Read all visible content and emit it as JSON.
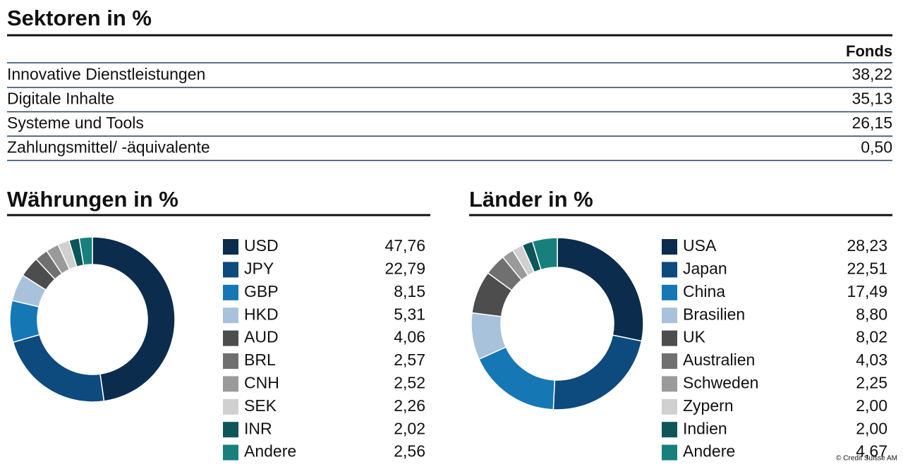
{
  "table": {
    "title": "Sektoren in %",
    "column": "Fonds",
    "rows": [
      [
        "Innovative Dienstleistungen",
        "38,22"
      ],
      [
        "Digitale Inhalte",
        "35,13"
      ],
      [
        "Systeme und Tools",
        "26,15"
      ],
      [
        "Zahlungsmittel/ -äquivalente",
        "0,50"
      ]
    ]
  },
  "chart_data": [
    {
      "type": "pie",
      "title": "Währungen in %",
      "categories": [
        "USD",
        "JPY",
        "GBP",
        "HKD",
        "AUD",
        "BRL",
        "CNH",
        "SEK",
        "INR",
        "Andere"
      ],
      "values": [
        47.76,
        22.79,
        8.15,
        5.31,
        4.06,
        2.57,
        2.52,
        2.26,
        2.02,
        2.56
      ],
      "value_labels": [
        "47,76",
        "22,79",
        "8,15",
        "5,31",
        "4,06",
        "2,57",
        "2,52",
        "2,26",
        "2,02",
        "2,56"
      ],
      "colors": [
        "#0b2c4d",
        "#0d4a7d",
        "#1677b5",
        "#a9c2db",
        "#4d4d4d",
        "#707070",
        "#9a9a9a",
        "#d0d0d0",
        "#0d5558",
        "#17807d"
      ]
    },
    {
      "type": "pie",
      "title": "Länder in %",
      "categories": [
        "USA",
        "Japan",
        "China",
        "Brasilien",
        "UK",
        "Australien",
        "Schweden",
        "Zypern",
        "Indien",
        "Andere"
      ],
      "values": [
        28.23,
        22.51,
        17.49,
        8.8,
        8.02,
        4.03,
        2.25,
        2.0,
        2.0,
        4.67
      ],
      "value_labels": [
        "28,23",
        "22,51",
        "17,49",
        "8,80",
        "8,02",
        "4,03",
        "2,25",
        "2,00",
        "2,00",
        "4,67"
      ],
      "colors": [
        "#0b2c4d",
        "#0d4a7d",
        "#1677b5",
        "#a9c2db",
        "#4d4d4d",
        "#707070",
        "#9a9a9a",
        "#d0d0d0",
        "#0d5558",
        "#17807d"
      ]
    }
  ],
  "credit": "© Credit Suisse AM"
}
